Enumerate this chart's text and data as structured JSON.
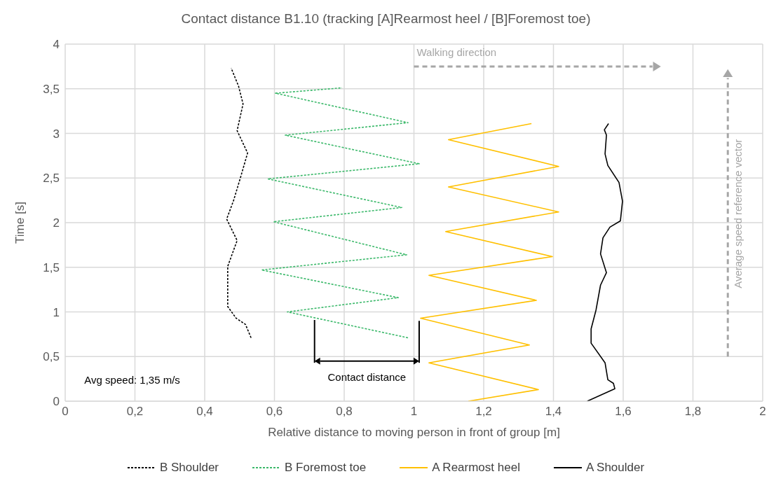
{
  "chart_data": {
    "type": "line",
    "title": "Contact distance B1.10 (tracking [A]Rearmost heel / [B]Foremost toe)",
    "xlabel": "Relative distance to moving person in front of group [m]",
    "ylabel": "Time [s]",
    "xlim": [
      0,
      2
    ],
    "xticks": [
      0,
      {
        "value": 0.2,
        "label": "0,2"
      },
      {
        "value": 0.4,
        "label": "0,4"
      },
      {
        "value": 0.6,
        "label": "0,6"
      },
      {
        "value": 0.8,
        "label": "0,8"
      },
      1,
      {
        "value": 1.2,
        "label": "1,2"
      },
      {
        "value": 1.4,
        "label": "1,4"
      },
      {
        "value": 1.6,
        "label": "1,6"
      },
      {
        "value": 1.8,
        "label": "1,8"
      },
      2
    ],
    "ylim": [
      0,
      4
    ],
    "yticks": [
      0,
      {
        "value": 0.5,
        "label": "0,5"
      },
      1,
      {
        "value": 1.5,
        "label": "1,5"
      },
      2,
      {
        "value": 2.5,
        "label": "2,5"
      },
      3,
      {
        "value": 3.5,
        "label": "3,5"
      },
      4
    ],
    "grid": true,
    "legend": "bottom",
    "marker": "none",
    "annotations": [
      "Walking direction",
      "Average speed reference vector",
      "Contact distance",
      "Avg speed: 1,35 m/s"
    ],
    "series": [
      {
        "name": "B Shoulder",
        "color": "#000000",
        "line_style": "dashed",
        "x": [
          0.533,
          0.517,
          0.49,
          0.466,
          0.466,
          0.493,
          0.463,
          0.483,
          0.503,
          0.523,
          0.493,
          0.51,
          0.497,
          0.476
        ],
        "values": [
          0.71,
          0.86,
          0.93,
          1.06,
          1.51,
          1.8,
          2.04,
          2.25,
          2.51,
          2.78,
          3.03,
          3.33,
          3.53,
          3.73
        ]
      },
      {
        "name": "B Foremost toe",
        "color": "#3cb96b",
        "line_style": "dashed",
        "x": [
          0.983,
          0.637,
          0.955,
          0.563,
          0.979,
          0.597,
          0.965,
          0.581,
          1.015,
          0.631,
          0.983,
          0.603,
          0.794
        ],
        "values": [
          0.71,
          1.0,
          1.16,
          1.47,
          1.64,
          2.01,
          2.17,
          2.49,
          2.66,
          2.98,
          3.12,
          3.45,
          3.51
        ]
      },
      {
        "name": "A Rearmost heel",
        "color": "#ffc000",
        "line_style": "solid",
        "x": [
          1.156,
          1.357,
          1.043,
          1.331,
          1.019,
          1.351,
          1.043,
          1.397,
          1.091,
          1.415,
          1.099,
          1.415,
          1.099,
          1.337
        ],
        "values": [
          0,
          0.13,
          0.43,
          0.63,
          0.93,
          1.13,
          1.41,
          1.62,
          1.9,
          2.12,
          2.4,
          2.63,
          2.93,
          3.11
        ]
      },
      {
        "name": "A Shoulder",
        "color": "#000000",
        "line_style": "solid",
        "x": [
          1.497,
          1.576,
          1.572,
          1.556,
          1.548,
          1.508,
          1.508,
          1.522,
          1.535,
          1.552,
          1.535,
          1.542,
          1.562,
          1.592,
          1.598,
          1.588,
          1.556,
          1.548,
          1.552,
          1.546,
          1.558
        ],
        "values": [
          0,
          0.14,
          0.2,
          0.24,
          0.43,
          0.65,
          0.81,
          1.02,
          1.3,
          1.44,
          1.65,
          1.83,
          1.95,
          2.02,
          2.24,
          2.45,
          2.64,
          2.77,
          2.98,
          3.04,
          3.11
        ]
      }
    ]
  }
}
